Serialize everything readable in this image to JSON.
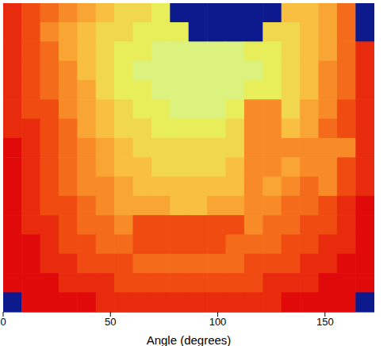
{
  "chart_data": {
    "type": "heatmap",
    "xlabel": "Angle (degrees)",
    "xlim": [
      0,
      173
    ],
    "xticks": [
      0,
      50,
      100,
      150
    ],
    "tick_labels": "x",
    "cells": [
      [
        2,
        3,
        4,
        5,
        6,
        7,
        8,
        8,
        9,
        0,
        0,
        0,
        0,
        0,
        0,
        7,
        7,
        6,
        4,
        0
      ],
      [
        2,
        3,
        5,
        6,
        7,
        8,
        8,
        9,
        9,
        9,
        0,
        0,
        0,
        0,
        8,
        8,
        7,
        6,
        4,
        0
      ],
      [
        2,
        3,
        4,
        6,
        7,
        8,
        9,
        9,
        10,
        10,
        10,
        10,
        10,
        9,
        9,
        8,
        7,
        6,
        4,
        2
      ],
      [
        2,
        3,
        4,
        5,
        7,
        8,
        9,
        10,
        10,
        10,
        10,
        10,
        10,
        10,
        9,
        8,
        7,
        5,
        4,
        2
      ],
      [
        2,
        3,
        4,
        5,
        6,
        8,
        9,
        9,
        10,
        10,
        10,
        10,
        10,
        9,
        9,
        8,
        7,
        5,
        4,
        2
      ],
      [
        2,
        3,
        3,
        5,
        6,
        7,
        8,
        9,
        9,
        10,
        10,
        10,
        9,
        5,
        5,
        8,
        6,
        5,
        3,
        2
      ],
      [
        2,
        2,
        3,
        4,
        6,
        7,
        8,
        8,
        9,
        9,
        9,
        9,
        8,
        5,
        5,
        7,
        6,
        4,
        3,
        2
      ],
      [
        1,
        2,
        3,
        4,
        5,
        6,
        7,
        8,
        8,
        8,
        8,
        8,
        8,
        5,
        5,
        5,
        5,
        5,
        5,
        2
      ],
      [
        1,
        2,
        3,
        4,
        5,
        6,
        7,
        7,
        8,
        8,
        8,
        8,
        7,
        5,
        5,
        6,
        5,
        5,
        3,
        2
      ],
      [
        1,
        2,
        3,
        4,
        5,
        5,
        6,
        7,
        7,
        7,
        7,
        7,
        7,
        5,
        6,
        5,
        4,
        5,
        3,
        2
      ],
      [
        1,
        2,
        3,
        3,
        4,
        5,
        6,
        6,
        6,
        7,
        7,
        6,
        6,
        5,
        5,
        4,
        4,
        3,
        2,
        1
      ],
      [
        1,
        2,
        2,
        3,
        4,
        4,
        5,
        3,
        3,
        3,
        3,
        3,
        3,
        5,
        4,
        4,
        3,
        3,
        2,
        1
      ],
      [
        1,
        1,
        2,
        3,
        3,
        4,
        4,
        3,
        3,
        3,
        3,
        3,
        4,
        4,
        4,
        3,
        3,
        2,
        2,
        1
      ],
      [
        1,
        1,
        2,
        2,
        3,
        3,
        3,
        4,
        4,
        4,
        4,
        4,
        4,
        3,
        3,
        3,
        2,
        2,
        1,
        1
      ],
      [
        1,
        1,
        1,
        2,
        2,
        2,
        3,
        3,
        3,
        3,
        3,
        3,
        3,
        3,
        2,
        2,
        2,
        1,
        1,
        1
      ],
      [
        0,
        1,
        1,
        1,
        1,
        2,
        2,
        2,
        2,
        2,
        2,
        2,
        2,
        2,
        2,
        1,
        1,
        1,
        1,
        0
      ]
    ]
  }
}
